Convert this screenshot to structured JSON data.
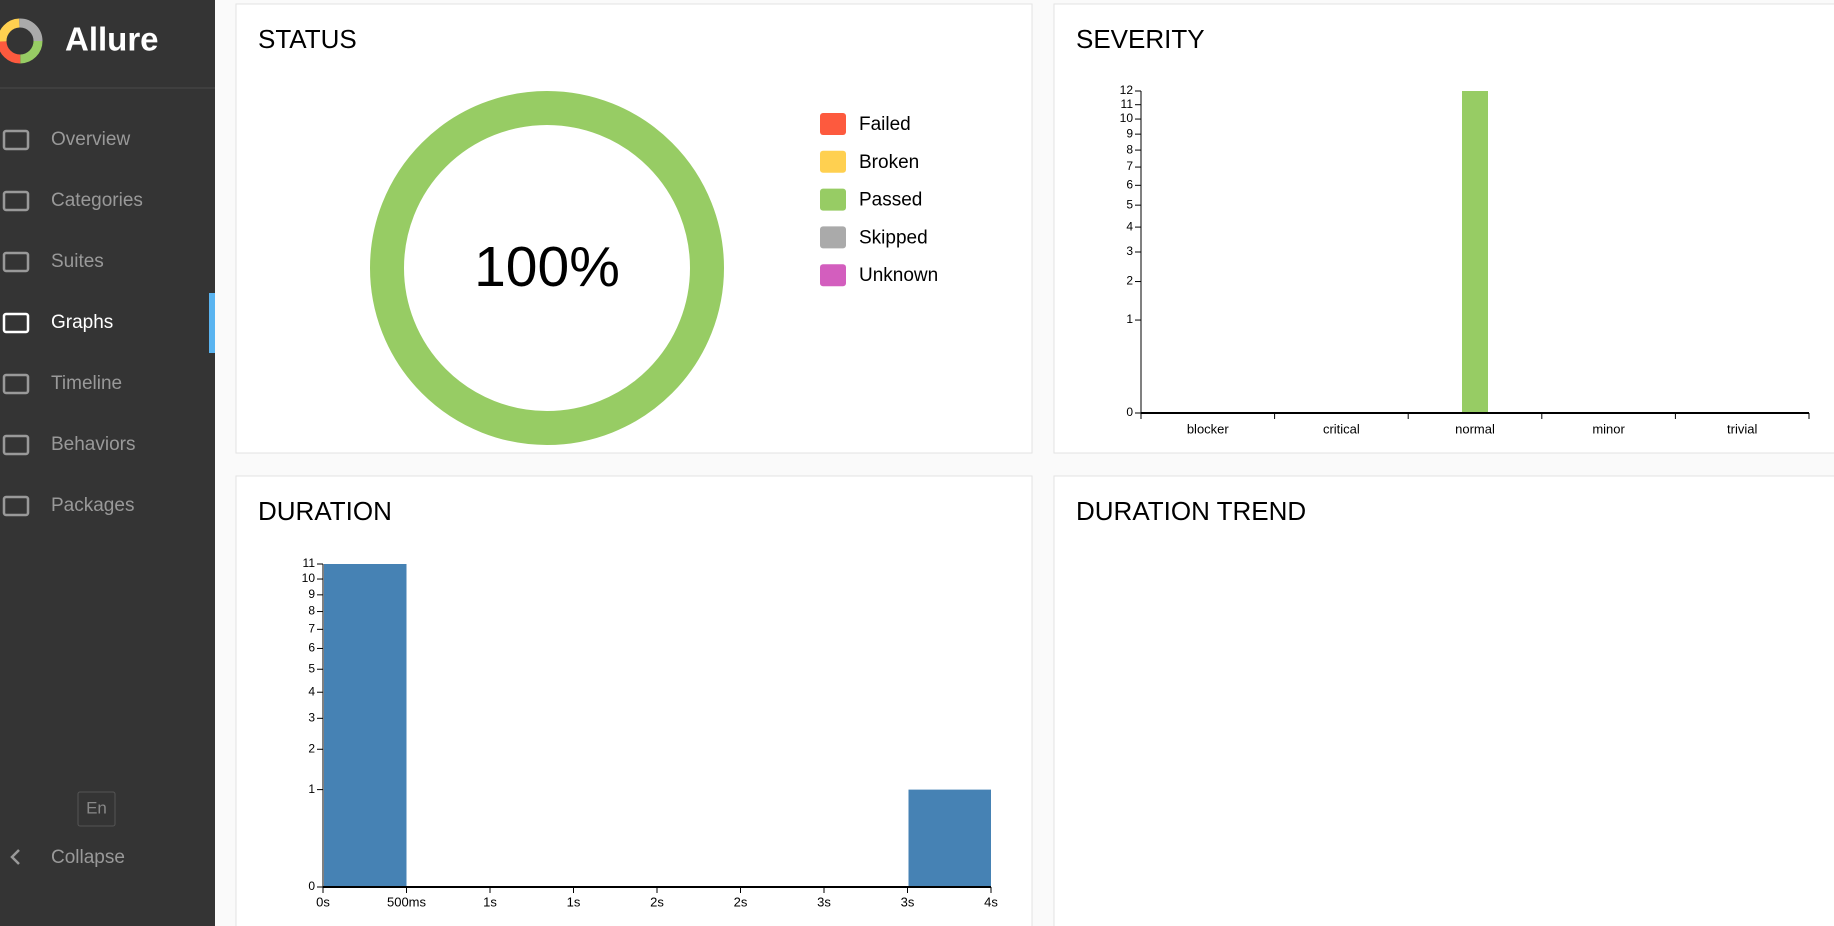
{
  "sidebar": {
    "brand": "Allure",
    "nav": [
      "Overview",
      "Categories",
      "Suites",
      "Graphs",
      "Timeline",
      "Behaviors",
      "Packages"
    ],
    "active_index": 3,
    "language": "En",
    "collapse": "Collapse"
  },
  "chart_data": [
    {
      "type": "pie",
      "title": "STATUS",
      "categories": [
        "Failed",
        "Broken",
        "Passed",
        "Skipped",
        "Unknown"
      ],
      "values": [
        0,
        0,
        100,
        0,
        0
      ],
      "value_labels": [
        null,
        null,
        "100%",
        null,
        null
      ],
      "colors": [
        "#fd5a3e",
        "#ffd050",
        "#97cc64",
        "#aaaaaa",
        "#d35ebe"
      ]
    },
    {
      "type": "bar",
      "title": "SEVERITY",
      "categories": [
        "blocker",
        "critical",
        "normal",
        "minor",
        "trivial"
      ],
      "values": [
        0,
        0,
        12,
        0,
        0
      ],
      "color": "#97cc64",
      "yscale": "sqrt",
      "ylim": [
        0,
        12
      ],
      "yticks": [
        0,
        1,
        2,
        3,
        4,
        5,
        6,
        7,
        8,
        9,
        10,
        11,
        12
      ]
    },
    {
      "type": "histogram",
      "title": "DURATION",
      "bins": [
        0,
        500,
        1000,
        1500,
        2000,
        2500,
        3000,
        3500,
        4000
      ],
      "values": [
        11,
        0,
        0,
        0,
        0,
        0,
        0,
        1
      ],
      "color": "#4682b4",
      "xlim": [
        0,
        4000
      ],
      "xticks": [
        {
          "value": 0,
          "label": "0s"
        },
        {
          "value": 500,
          "label": "500ms"
        },
        {
          "value": 1000,
          "label": "1s"
        },
        {
          "value": 1500,
          "label": "1s"
        },
        {
          "value": 2000,
          "label": "2s"
        },
        {
          "value": 2500,
          "label": "2s"
        },
        {
          "value": 3000,
          "label": "3s"
        },
        {
          "value": 3500,
          "label": "3s"
        },
        {
          "value": 4000,
          "label": "4s"
        }
      ],
      "yscale": "sqrt",
      "ylim": [
        0,
        11
      ],
      "yticks": [
        0,
        1,
        2,
        3,
        4,
        5,
        6,
        7,
        8,
        9,
        10,
        11
      ]
    },
    {
      "type": "line",
      "title": "DURATION TREND"
    }
  ]
}
